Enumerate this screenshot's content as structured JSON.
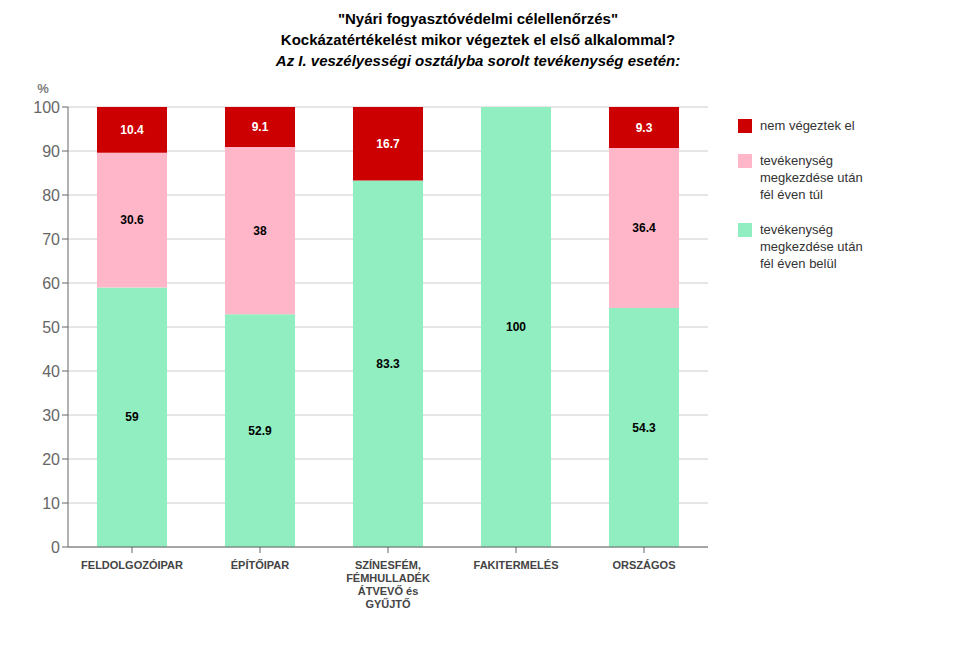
{
  "chart_data": {
    "type": "bar",
    "title": "\"Nyári fogyasztóvédelmi célellenőrzés\"\nKockázatértékelést mikor végeztek el első alkalommal?\nAz I. veszélyességi osztályba sorolt tevékenység esetén:",
    "y_label": "%",
    "categories": [
      "FELDOLGOZÓIPAR",
      "ÉPÍTŐIPAR",
      "SZÍNESFÉM,\nFÉMHULLADÉK\nÁTVEVŐ és\nGYŰJTŐ",
      "FAKITERMELÉS",
      "ORSZÁGOS"
    ],
    "series": [
      {
        "name": "tevékenység\nmegkezdése után\nfél éven belül",
        "color": "#90EEC0",
        "values": [
          59.0,
          52.9,
          83.3,
          100.0,
          54.3
        ]
      },
      {
        "name": "tevékenység\nmegkezdése után\nfél éven túl",
        "color": "#FFB6C8",
        "values": [
          30.6,
          38.0,
          0.0,
          0.0,
          36.4
        ]
      },
      {
        "name": "nem végeztek el",
        "color": "#CC0000",
        "values": [
          10.4,
          9.1,
          16.7,
          0.0,
          9.3
        ]
      }
    ],
    "stacked": true,
    "data_labels": true,
    "ylim": [
      0,
      100
    ],
    "yticks": [
      0,
      10,
      20,
      30,
      40,
      50,
      60,
      70,
      80,
      90,
      100
    ],
    "grid": true,
    "legend": "right"
  }
}
